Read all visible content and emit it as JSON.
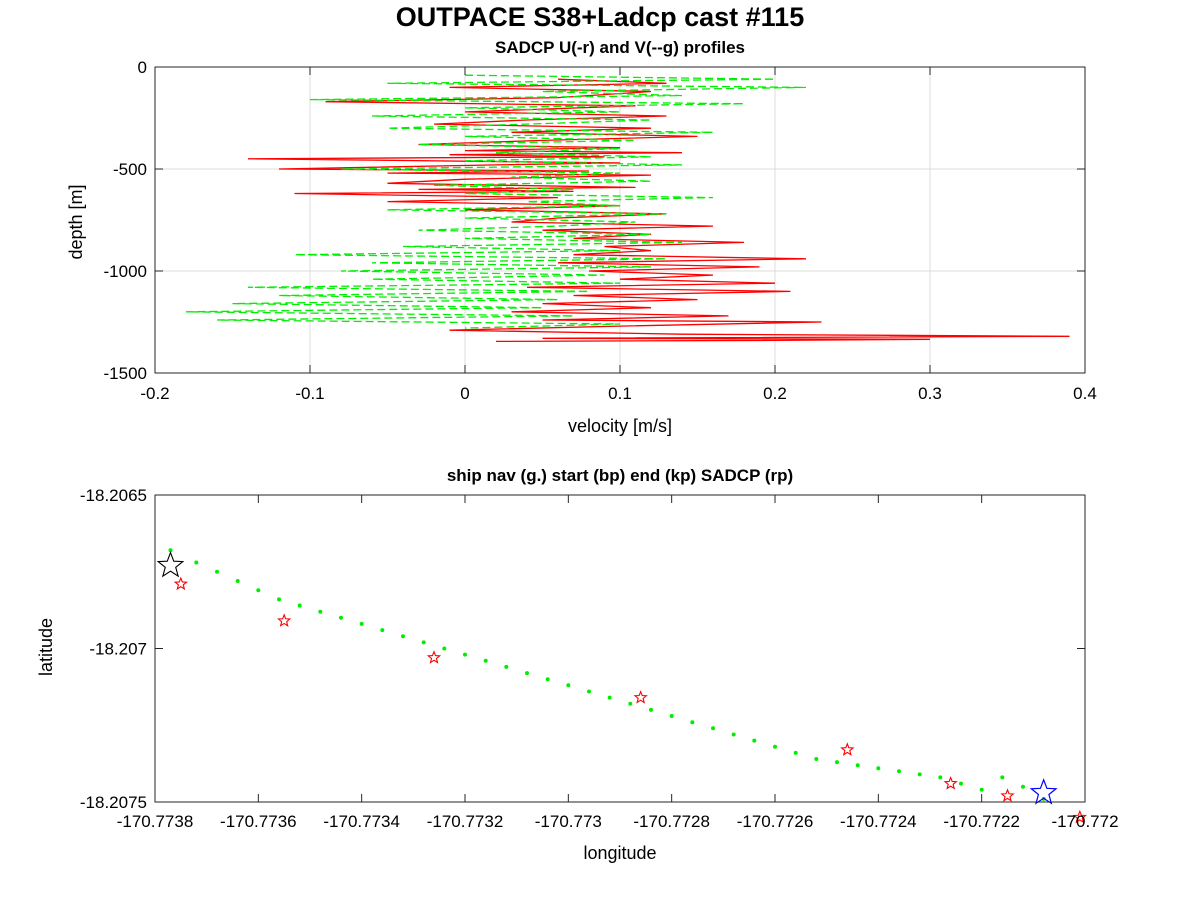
{
  "figure": {
    "title": "OUTPACE S38+Ladcp cast #115"
  },
  "chart_data": [
    {
      "type": "line",
      "title": "SADCP U(-r) and V(--g) profiles",
      "xlabel": "velocity [m/s]",
      "ylabel": "depth [m]",
      "xlim": [
        -0.2,
        0.4
      ],
      "ylim": [
        -1500,
        0
      ],
      "xticks": [
        -0.2,
        -0.1,
        0,
        0.1,
        0.2,
        0.3,
        0.4
      ],
      "xtick_labels": [
        "-0.2",
        "-0.1",
        "0",
        "0.1",
        "0.2",
        "0.3",
        "0.4"
      ],
      "yticks": [
        -1500,
        -1000,
        -500,
        0
      ],
      "ytick_labels": [
        "-1500",
        "-1000",
        "-500",
        "0"
      ],
      "grid": true,
      "series": [
        {
          "style": "solid",
          "color": "#ff0000",
          "x": [
            0.06,
            0.13,
            -0.01,
            0.12,
            0.06,
            -0.09,
            0.11,
            0.0,
            0.13,
            0.04,
            -0.02,
            0.12,
            0.03,
            0.15,
            0.05,
            -0.03,
            0.1,
            0.0,
            0.14,
            -0.01,
            0.09,
            -0.14,
            0.1,
            0.02,
            -0.12,
            0.08,
            -0.05,
            0.12,
            0.0,
            -0.05,
            0.11,
            -0.03,
            0.07,
            -0.11,
            0.06,
            -0.05,
            0.1,
            0.0,
            0.13,
            0.06,
            0.03,
            0.16,
            0.05,
            0.12,
            0.07,
            0.18,
            0.09,
            0.12,
            0.07,
            0.22,
            0.06,
            0.19,
            0.08,
            0.16,
            0.1,
            0.2,
            0.04,
            0.21,
            0.07,
            0.15,
            0.05,
            0.12,
            0.03,
            0.17,
            0.05,
            0.23,
            0.1,
            -0.01,
            0.14,
            0.39,
            0.05,
            0.3,
            0.2,
            0.02
          ],
          "y": [
            -60,
            -80,
            -100,
            -120,
            -150,
            -170,
            -190,
            -220,
            -240,
            -260,
            -280,
            -300,
            -320,
            -340,
            -360,
            -380,
            -395,
            -410,
            -420,
            -430,
            -440,
            -450,
            -470,
            -480,
            -500,
            -510,
            -520,
            -530,
            -550,
            -570,
            -590,
            -600,
            -610,
            -620,
            -640,
            -660,
            -680,
            -700,
            -720,
            -740,
            -760,
            -780,
            -800,
            -820,
            -840,
            -860,
            -880,
            -900,
            -920,
            -940,
            -960,
            -980,
            -1000,
            -1020,
            -1040,
            -1060,
            -1080,
            -1100,
            -1120,
            -1140,
            -1160,
            -1180,
            -1200,
            -1220,
            -1240,
            -1250,
            -1270,
            -1290,
            -1310,
            -1320,
            -1330,
            -1335,
            -1340,
            -1345
          ]
        },
        {
          "style": "dashed",
          "color": "#00ee00",
          "x": [
            0.0,
            0.2,
            -0.05,
            0.22,
            0.05,
            0.14,
            -0.1,
            0.18,
            0.0,
            0.1,
            -0.06,
            0.12,
            0.04,
            -0.05,
            0.16,
            0.0,
            0.11,
            -0.03,
            0.1,
            0.02,
            0.12,
            0.0,
            0.14,
            -0.08,
            0.1,
            0.03,
            0.12,
            -0.02,
            0.07,
            0.0,
            0.16,
            0.04,
            0.1,
            -0.05,
            0.13,
            0.0,
            0.11,
            0.06,
            -0.03,
            0.12,
            0.0,
            0.14,
            -0.04,
            0.1,
            -0.11,
            0.13,
            -0.06,
            0.12,
            -0.08,
            0.09,
            -0.06,
            0.1,
            -0.14,
            0.08,
            -0.12,
            0.06,
            -0.15,
            0.05,
            -0.18,
            0.07,
            -0.16,
            0.1,
            0.0
          ],
          "y": [
            -40,
            -60,
            -80,
            -100,
            -120,
            -140,
            -160,
            -180,
            -200,
            -220,
            -240,
            -260,
            -280,
            -300,
            -320,
            -340,
            -360,
            -380,
            -400,
            -420,
            -440,
            -460,
            -480,
            -500,
            -520,
            -540,
            -560,
            -580,
            -600,
            -620,
            -640,
            -660,
            -680,
            -700,
            -720,
            -740,
            -760,
            -780,
            -800,
            -820,
            -840,
            -860,
            -880,
            -900,
            -920,
            -940,
            -960,
            -980,
            -1000,
            -1020,
            -1040,
            -1060,
            -1080,
            -1100,
            -1120,
            -1140,
            -1160,
            -1180,
            -1200,
            -1220,
            -1240,
            -1260,
            -1280
          ]
        }
      ]
    },
    {
      "type": "scatter",
      "title": "ship nav (g.) start (bp) end (kp) SADCP (rp)",
      "xlabel": "longitude",
      "ylabel": "latitude",
      "xlim": [
        -170.7738,
        -170.772
      ],
      "ylim": [
        -18.2075,
        -18.2065
      ],
      "xticks": [
        -170.7738,
        -170.7736,
        -170.7734,
        -170.7732,
        -170.773,
        -170.7728,
        -170.7726,
        -170.7724,
        -170.7722,
        -170.772
      ],
      "xtick_labels": [
        "-170.7738",
        "-170.7736",
        "-170.7734",
        "-170.7732",
        "-170.773",
        "-170.7728",
        "-170.7726",
        "-170.7724",
        "-170.7722",
        "-170.772"
      ],
      "yticks": [
        -18.2075,
        -18.207,
        -18.2065
      ],
      "ytick_labels": [
        "-18.2075",
        "-18.207",
        "-18.2065"
      ],
      "grid": false,
      "nav": {
        "color": "#00ee00",
        "lon": [
          -170.77377,
          -170.77372,
          -170.77368,
          -170.77364,
          -170.7736,
          -170.77356,
          -170.77352,
          -170.77348,
          -170.77344,
          -170.7734,
          -170.77336,
          -170.77332,
          -170.77328,
          -170.77324,
          -170.7732,
          -170.77316,
          -170.77312,
          -170.77308,
          -170.77304,
          -170.773,
          -170.77296,
          -170.77292,
          -170.77288,
          -170.77284,
          -170.7728,
          -170.77276,
          -170.77272,
          -170.77268,
          -170.77264,
          -170.7726,
          -170.77256,
          -170.77252,
          -170.77248,
          -170.77244,
          -170.7724,
          -170.77236,
          -170.77232,
          -170.77228,
          -170.77224,
          -170.7722,
          -170.77216,
          -170.77212,
          -170.77208
        ],
        "lat": [
          -18.20668,
          -18.20672,
          -18.20675,
          -18.20678,
          -18.20681,
          -18.20684,
          -18.20686,
          -18.20688,
          -18.2069,
          -18.20692,
          -18.20694,
          -18.20696,
          -18.20698,
          -18.207,
          -18.20702,
          -18.20704,
          -18.20706,
          -18.20708,
          -18.2071,
          -18.20712,
          -18.20714,
          -18.20716,
          -18.20718,
          -18.2072,
          -18.20722,
          -18.20724,
          -18.20726,
          -18.20728,
          -18.2073,
          -18.20732,
          -18.20734,
          -18.20736,
          -18.20737,
          -18.20738,
          -18.20739,
          -18.2074,
          -18.20741,
          -18.20742,
          -18.20744,
          -18.20746,
          -18.20742,
          -18.20745,
          -18.20749
        ]
      },
      "sadcp": {
        "color": "#ff0000",
        "lon": [
          -170.77375,
          -170.77355,
          -170.77326,
          -170.77286,
          -170.77246,
          -170.77226,
          -170.77215,
          -170.77201
        ],
        "lat": [
          -18.20679,
          -18.20691,
          -18.20703,
          -18.20716,
          -18.20733,
          -18.20744,
          -18.20748,
          -18.20755
        ]
      },
      "start": {
        "color": "#000000",
        "lon": -170.77377,
        "lat": -18.20673
      },
      "end": {
        "color": "#0000ff",
        "lon": -170.77208,
        "lat": -18.20747
      }
    }
  ]
}
